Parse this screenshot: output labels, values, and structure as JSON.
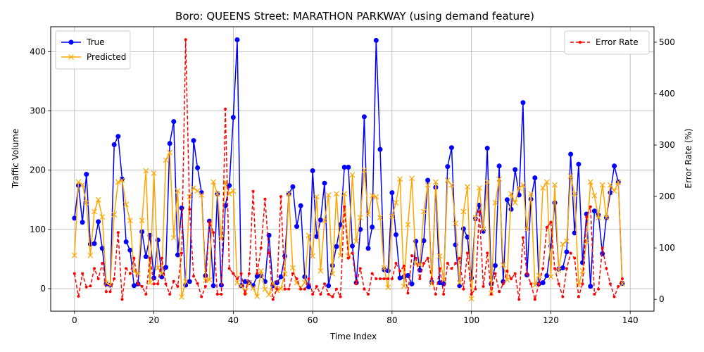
{
  "chart_data": {
    "type": "line",
    "title": "Boro: QUEENS Street: MARATHON PARKWAY (using demand feature)",
    "xlabel": "Time Index",
    "ylabel": "Traffic Volume",
    "ylabel_right": "Error Rate (%)",
    "xlim": [
      -6,
      146
    ],
    "ylim": [
      -38,
      442
    ],
    "ylim_right": [
      -23,
      530
    ],
    "xticks": [
      "0",
      "20",
      "40",
      "60",
      "80",
      "100",
      "120",
      "140"
    ],
    "yticks": [
      "0",
      "100",
      "200",
      "300",
      "400"
    ],
    "yticks_right": [
      "0",
      "100",
      "200",
      "300",
      "400",
      "500"
    ],
    "grid": true,
    "legend_left": {
      "placement": "upper-left",
      "entries": [
        "True",
        "Predicted"
      ]
    },
    "legend_right": {
      "placement": "upper-right",
      "entries": [
        "Error Rate"
      ]
    },
    "colors": {
      "true": "#0000ff",
      "predicted": "#ffa500",
      "error": "#ff0000",
      "grid": "#b0b0b0"
    },
    "series": [
      {
        "name": "True",
        "axis": "left",
        "style": "solid-circle",
        "values": [
          119,
          174,
          112,
          193,
          75,
          76,
          113,
          68,
          8,
          6,
          243,
          257,
          185,
          79,
          65,
          5,
          8,
          96,
          54,
          90,
          18,
          82,
          20,
          36,
          245,
          282,
          57,
          136,
          6,
          12,
          250,
          204,
          162,
          22,
          114,
          5,
          160,
          6,
          140,
          174,
          289,
          420,
          5,
          12,
          10,
          5,
          21,
          22,
          12,
          90,
          5,
          10,
          20,
          55,
          160,
          172,
          105,
          140,
          20,
          3,
          199,
          88,
          116,
          178,
          5,
          39,
          71,
          108,
          205,
          205,
          72,
          10,
          100,
          290,
          68,
          104,
          419,
          235,
          32,
          30,
          162,
          91,
          18,
          20,
          22,
          8,
          80,
          31,
          81,
          183,
          11,
          171,
          10,
          8,
          206,
          238,
          74,
          5,
          101,
          87,
          18,
          118,
          141,
          97,
          237,
          8,
          39,
          207,
          12,
          150,
          134,
          201,
          158,
          314,
          23,
          151,
          187,
          8,
          10,
          22,
          72,
          145,
          33,
          35,
          62,
          227,
          94,
          210,
          44,
          126,
          4,
          131,
          124,
          59,
          120,
          162,
          207,
          180,
          9
        ]
      },
      {
        "name": "Predicted",
        "axis": "left",
        "style": "solid-x",
        "values": [
          56,
          180,
          175,
          145,
          56,
          130,
          150,
          121,
          10,
          6,
          125,
          180,
          183,
          142,
          115,
          29,
          25,
          115,
          199,
          10,
          195,
          35,
          25,
          217,
          230,
          86,
          165,
          -14,
          12,
          155,
          170,
          165,
          158,
          14,
          15,
          180,
          160,
          84,
          180,
          160,
          165,
          10,
          5,
          -5,
          10,
          1,
          -13,
          30,
          -1,
          -10,
          10,
          -3,
          0,
          25,
          160,
          35,
          10,
          2,
          10,
          90,
          55,
          155,
          30,
          115,
          158,
          25,
          160,
          56,
          160,
          55,
          192,
          80,
          120,
          200,
          125,
          157,
          155,
          120,
          35,
          2,
          122,
          145,
          185,
          4,
          108,
          186,
          42,
          40,
          130,
          175,
          8,
          180,
          55,
          15,
          183,
          175,
          110,
          10,
          130,
          172,
          -17,
          120,
          170,
          100,
          180,
          -8,
          145,
          185,
          40,
          15,
          160,
          145,
          170,
          175,
          100,
          160,
          6,
          22,
          170,
          180,
          20,
          175,
          31,
          75,
          80,
          190,
          160,
          6,
          30,
          80,
          180,
          157,
          120,
          175,
          120,
          175,
          165,
          180,
          8
        ]
      },
      {
        "name": "Error Rate",
        "axis": "right",
        "style": "dashed-dot",
        "values": [
          50,
          6,
          50,
          24,
          26,
          60,
          40,
          70,
          15,
          15,
          40,
          130,
          0,
          60,
          50,
          80,
          30,
          25,
          10,
          80,
          30,
          30,
          80,
          30,
          10,
          35,
          25,
          90,
          505,
          175,
          45,
          31,
          5,
          25,
          150,
          130,
          10,
          10,
          370,
          60,
          50,
          40,
          50,
          10,
          50,
          210,
          50,
          100,
          195,
          90,
          0,
          20,
          200,
          20,
          20,
          50,
          40,
          20,
          20,
          40,
          10,
          25,
          10,
          30,
          10,
          5,
          20,
          5,
          180,
          80,
          90,
          30,
          60,
          20,
          10,
          50,
          40,
          40,
          40,
          40,
          40,
          70,
          55,
          65,
          12,
          85,
          80,
          40,
          70,
          80,
          40,
          10,
          60,
          10,
          70,
          60,
          70,
          80,
          20,
          90,
          10,
          20,
          170,
          25,
          90,
          10,
          50,
          15,
          30,
          55,
          40,
          50,
          0,
          120,
          50,
          30,
          0,
          30,
          60,
          140,
          150,
          60,
          30,
          5,
          60,
          90,
          80,
          5,
          30,
          160,
          180,
          10,
          20,
          100,
          60,
          30,
          5,
          25,
          40
        ]
      }
    ]
  }
}
